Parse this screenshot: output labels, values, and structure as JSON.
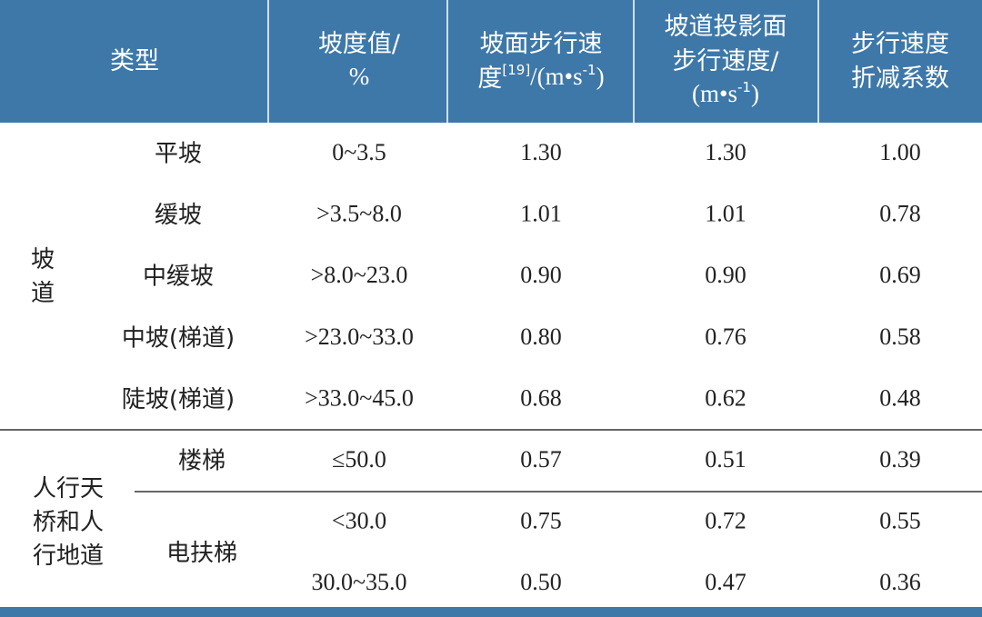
{
  "header": {
    "columns": [
      {
        "lines": [
          [
            "类型"
          ]
        ]
      },
      {
        "lines": [
          [
            "坡度值/"
          ],
          [
            "%"
          ]
        ]
      },
      {
        "lines": [
          [
            "坡面步行速"
          ],
          [
            "度",
            {
              "sup": "[19]"
            },
            "/(m•s",
            {
              "sup": "-1"
            },
            ")"
          ]
        ]
      },
      {
        "lines": [
          [
            "坡道投影面"
          ],
          [
            "步行速度/"
          ],
          [
            "(m•s",
            {
              "sup": "-1"
            },
            ")"
          ]
        ]
      },
      {
        "lines": [
          [
            "步行速度"
          ],
          [
            "折减系数"
          ]
        ]
      }
    ]
  },
  "groups": [
    {
      "label_lines": [
        "坡",
        "道"
      ],
      "items": [
        {
          "name": "平坡",
          "rows": [
            [
              "0~3.5",
              "1.30",
              "1.30",
              "1.00"
            ]
          ]
        },
        {
          "name": "缓坡",
          "rows": [
            [
              ">3.5~8.0",
              "1.01",
              "1.01",
              "0.78"
            ]
          ]
        },
        {
          "name": "中缓坡",
          "rows": [
            [
              ">8.0~23.0",
              "0.90",
              "0.90",
              "0.69"
            ]
          ]
        },
        {
          "name": "中坡(梯道)",
          "rows": [
            [
              ">23.0~33.0",
              "0.80",
              "0.76",
              "0.58"
            ]
          ]
        },
        {
          "name": "陡坡(梯道)",
          "rows": [
            [
              ">33.0~45.0",
              "0.68",
              "0.62",
              "0.48"
            ]
          ]
        }
      ]
    },
    {
      "label_lines": [
        "人行天",
        "桥和人",
        "行地道"
      ],
      "items": [
        {
          "name": "楼梯",
          "rows": [
            [
              "≤50.0",
              "0.57",
              "0.51",
              "0.39"
            ]
          ]
        },
        {
          "name": "电扶梯",
          "rows": [
            [
              "<30.0",
              "0.75",
              "0.72",
              "0.55"
            ],
            [
              "30.0~35.0",
              "0.50",
              "0.47",
              "0.36"
            ]
          ]
        }
      ]
    }
  ]
}
